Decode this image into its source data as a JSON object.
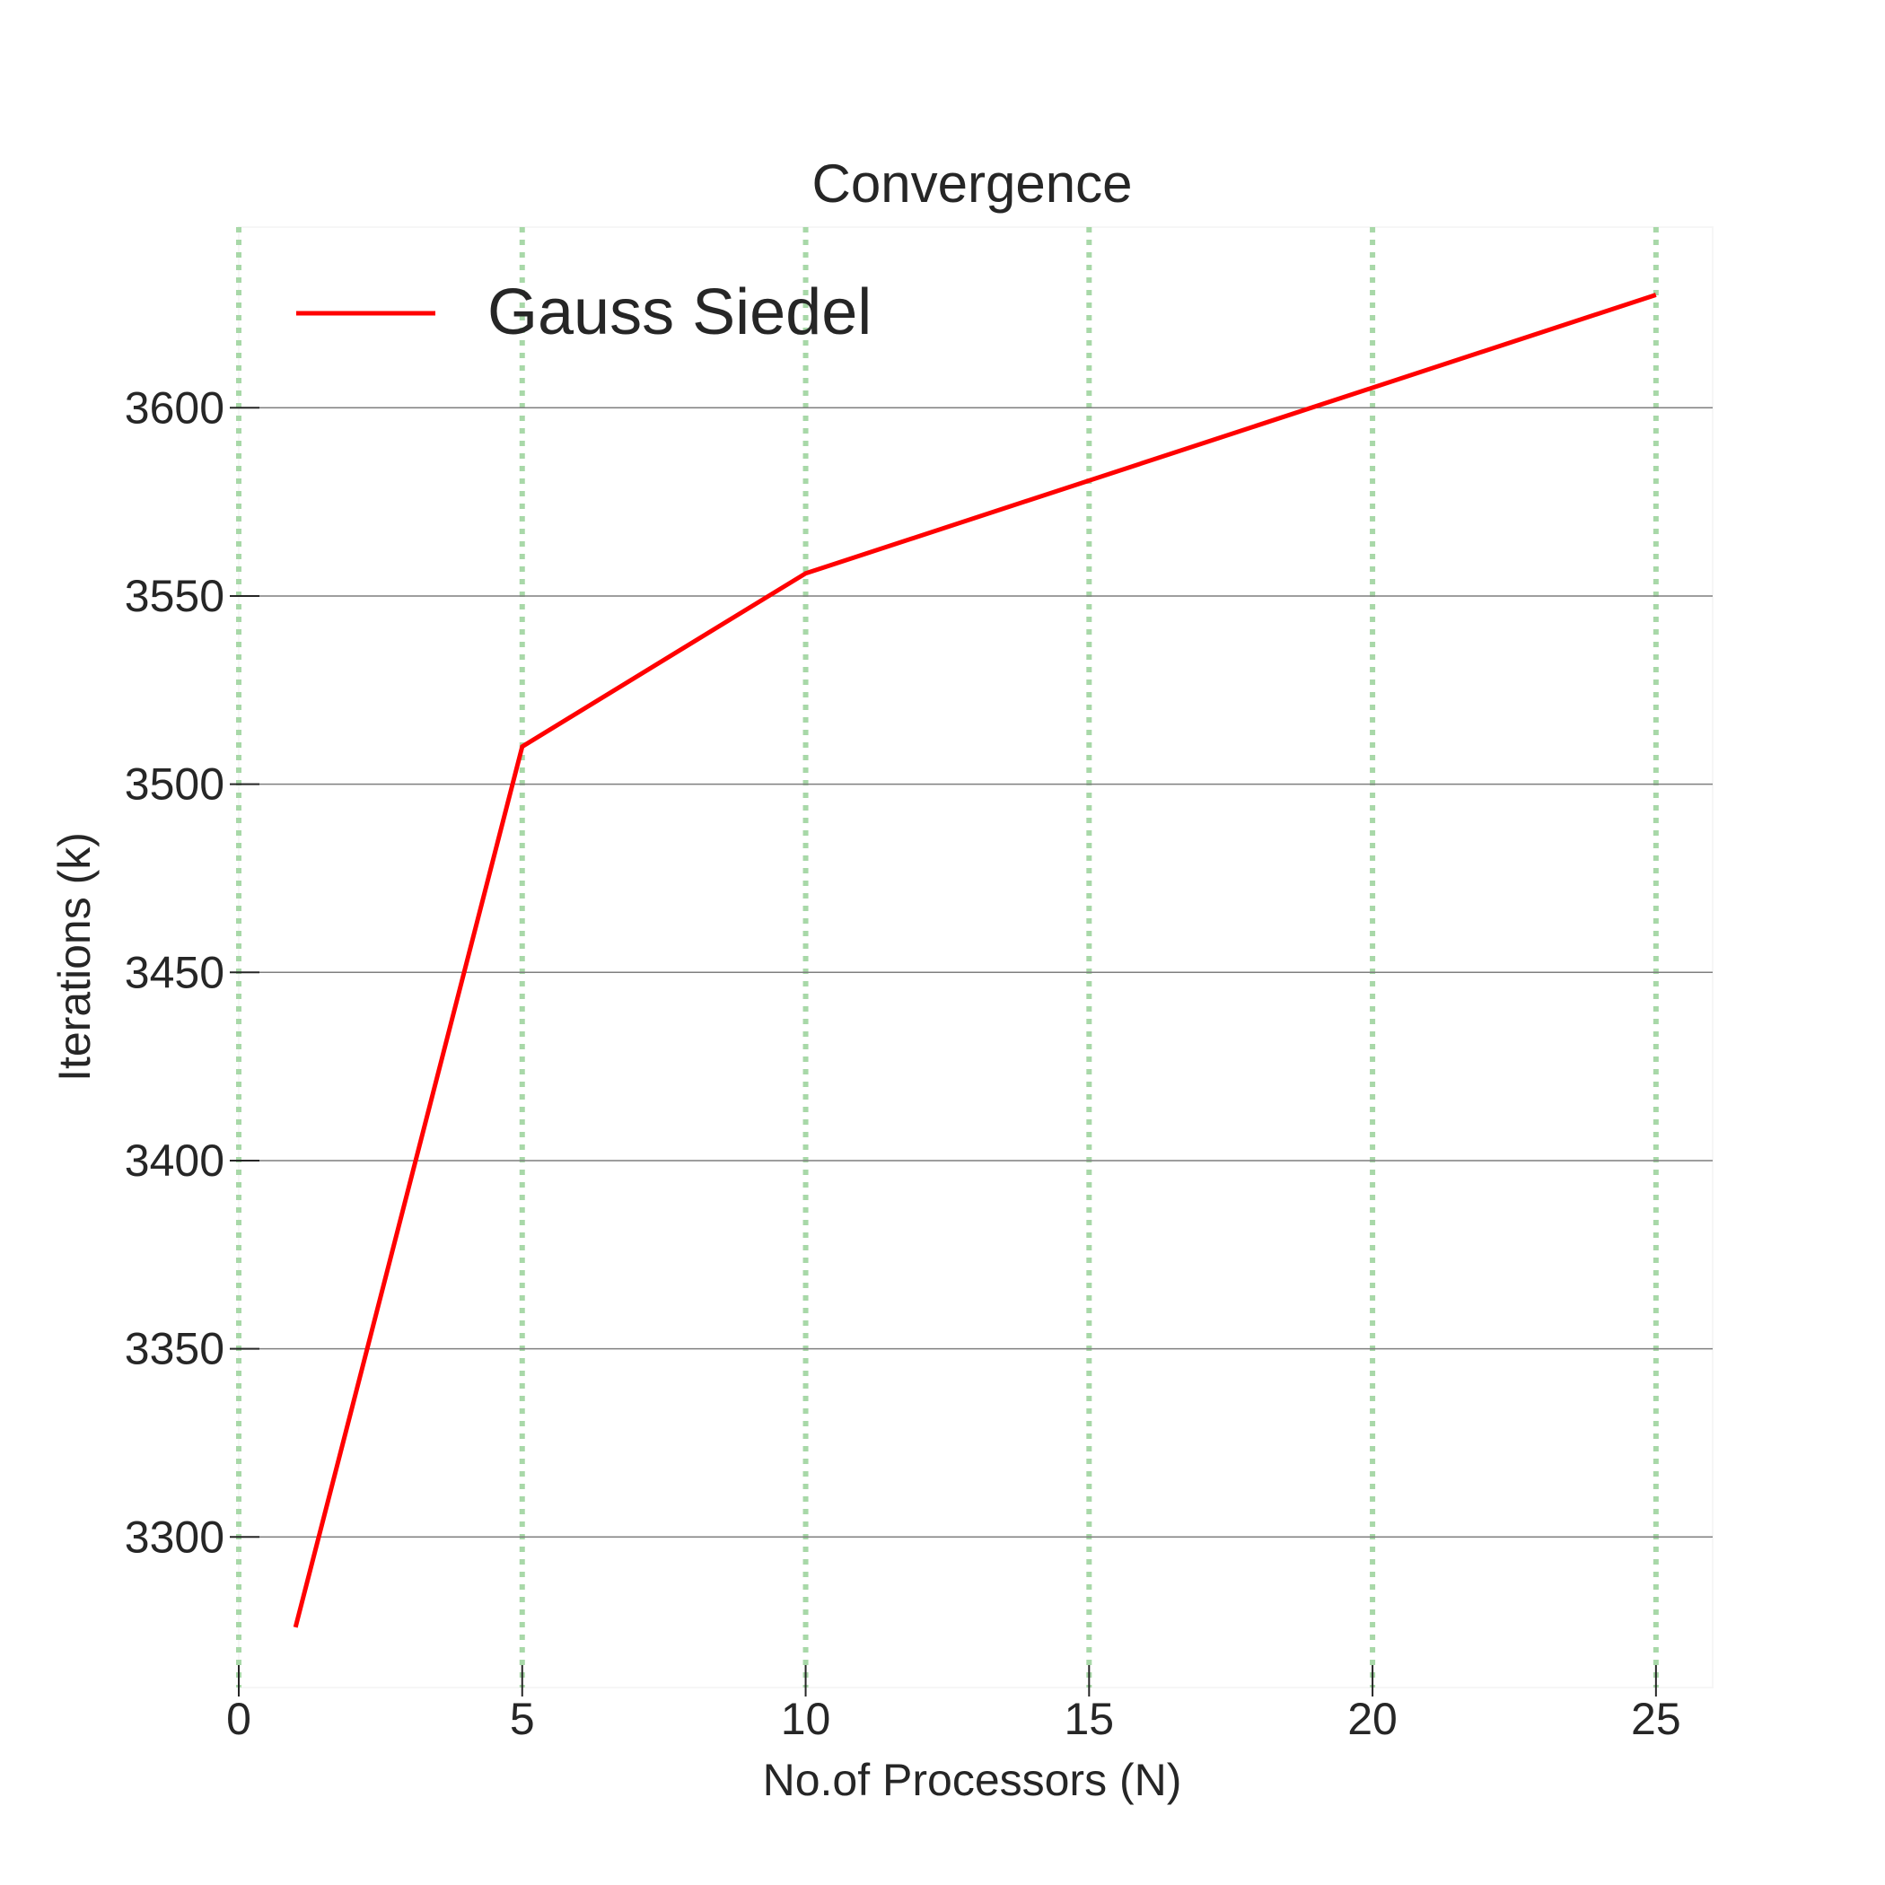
{
  "chart_data": {
    "type": "line",
    "title": "Convergence",
    "xlabel": "No.of Processors (N)",
    "ylabel": "Iterations (k)",
    "xlim": [
      0,
      26
    ],
    "ylim": [
      3260,
      3648
    ],
    "xticks": [
      0,
      5,
      10,
      15,
      20,
      25
    ],
    "yticks": [
      3300,
      3350,
      3400,
      3450,
      3500,
      3550,
      3600
    ],
    "x_grid": true,
    "y_grid": true,
    "legend_position": "top-left",
    "series": [
      {
        "name": "Gauss Siedel",
        "color": "#ff0000",
        "x": [
          1,
          5,
          10,
          25
        ],
        "y": [
          3276,
          3510,
          3556,
          3630
        ]
      }
    ],
    "colors": {
      "x_grid": "#a8d8a8",
      "y_grid": "#7f7f7f",
      "text": "#262626",
      "background": "#ffffff"
    }
  }
}
